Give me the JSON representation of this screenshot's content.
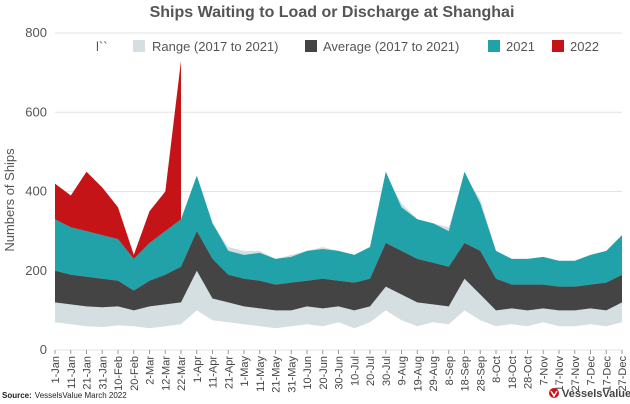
{
  "chart_data": {
    "type": "area",
    "title": "Ships Waiting to Load or Discharge at Shanghai",
    "ylabel": "Numbers of Ships",
    "xlabel": "",
    "ylim": [
      0,
      800
    ],
    "yticks": [
      0,
      200,
      400,
      600,
      800
    ],
    "legend_position": "top",
    "x_tick_labels": [
      "1-Jan",
      "11-Jan",
      "21-Jan",
      "31-Jan",
      "10-Feb",
      "20-Feb",
      "2-Mar",
      "12-Mar",
      "22-Mar",
      "1-Apr",
      "11-Apr",
      "21-Apr",
      "1-May",
      "11-May",
      "21-May",
      "31-May",
      "10-Jun",
      "20-Jun",
      "30-Jun",
      "10-Jul",
      "20-Jul",
      "30-Jul",
      "9-Aug",
      "19-Aug",
      "29-Aug",
      "8-Sep",
      "18-Sep",
      "28-Sep",
      "8-Oct",
      "18-Oct",
      "28-Oct",
      "7-Nov",
      "17-Nov",
      "27-Nov",
      "7-Dec",
      "17-Dec",
      "27-Dec"
    ],
    "series": [
      {
        "name": "Range (2017 to 2021)",
        "color": "#d5dfe2",
        "kind": "band",
        "low": [
          70,
          65,
          60,
          58,
          62,
          60,
          55,
          60,
          65,
          100,
          75,
          70,
          65,
          60,
          55,
          60,
          65,
          60,
          70,
          55,
          70,
          100,
          75,
          60,
          70,
          65,
          100,
          75,
          60,
          65,
          60,
          70,
          60,
          60,
          65,
          60,
          70
        ],
        "high": [
          330,
          310,
          300,
          290,
          280,
          230,
          270,
          300,
          330,
          400,
          320,
          260,
          250,
          250,
          230,
          240,
          250,
          260,
          250,
          240,
          260,
          440,
          370,
          330,
          320,
          310,
          440,
          380,
          250,
          230,
          230,
          230,
          220,
          220,
          230,
          240,
          270
        ]
      },
      {
        "name": "Average (2017 to 2021)",
        "color": "#444444",
        "kind": "band",
        "low": [
          120,
          115,
          110,
          108,
          110,
          100,
          110,
          115,
          120,
          200,
          130,
          120,
          110,
          105,
          100,
          100,
          110,
          105,
          110,
          100,
          110,
          160,
          140,
          120,
          115,
          110,
          180,
          140,
          100,
          105,
          100,
          105,
          100,
          100,
          105,
          100,
          120
        ],
        "high": [
          200,
          190,
          185,
          180,
          175,
          150,
          175,
          190,
          210,
          300,
          230,
          190,
          180,
          175,
          165,
          170,
          175,
          180,
          175,
          170,
          180,
          270,
          250,
          230,
          220,
          210,
          270,
          250,
          180,
          165,
          165,
          165,
          160,
          160,
          165,
          170,
          190
        ]
      },
      {
        "name": "2021",
        "color": "#21a2a8",
        "kind": "line",
        "values": [
          330,
          310,
          300,
          290,
          280,
          230,
          270,
          300,
          330,
          440,
          320,
          250,
          240,
          245,
          230,
          235,
          250,
          255,
          250,
          240,
          260,
          450,
          360,
          330,
          320,
          300,
          450,
          370,
          250,
          230,
          230,
          235,
          225,
          225,
          240,
          250,
          290
        ]
      },
      {
        "name": "2022",
        "color": "#c51417",
        "kind": "line",
        "values": [
          420,
          390,
          450,
          410,
          360,
          240,
          350,
          400,
          730
        ]
      }
    ]
  },
  "legend": {
    "marker_text": "l``",
    "items": [
      {
        "label": "Range (2017 to 2021)",
        "color": "#d5dfe2"
      },
      {
        "label": "Average (2017 to 2021)",
        "color": "#444444"
      },
      {
        "label": "2021",
        "color": "#21a2a8"
      },
      {
        "label": "2022",
        "color": "#c51417"
      }
    ]
  },
  "footer": {
    "source_label": "Source:",
    "source_text": "VesselsValue March 2022",
    "brand": "VesselsValue"
  }
}
